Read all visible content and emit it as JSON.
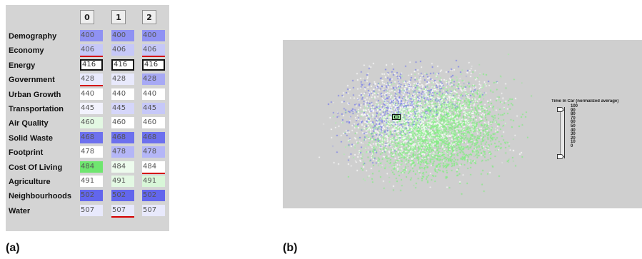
{
  "panel_a": {
    "caption": "(a)",
    "columns": [
      "0",
      "1",
      "2"
    ],
    "rows": [
      {
        "label": "Demography",
        "cells": [
          {
            "value": "400",
            "color": "#8f92f3"
          },
          {
            "value": "400",
            "color": "#8f92f3"
          },
          {
            "value": "400",
            "color": "#8f92f3"
          }
        ]
      },
      {
        "label": "Economy",
        "cells": [
          {
            "value": "406",
            "color": "#c6c8f8",
            "underline": true
          },
          {
            "value": "406",
            "color": "#c6c8f8"
          },
          {
            "value": "406",
            "color": "#c6c8f8",
            "underline": true
          }
        ]
      },
      {
        "label": "Energy",
        "cells": [
          {
            "value": "416",
            "color": "#ffffff",
            "selected": true
          },
          {
            "value": "416",
            "color": "#ffffff",
            "selected": true
          },
          {
            "value": "416",
            "color": "#ffffff",
            "selected": true
          }
        ]
      },
      {
        "label": "Government",
        "cells": [
          {
            "value": "428",
            "color": "#e8e9fc",
            "underline": true
          },
          {
            "value": "428",
            "color": "#e8e9fc"
          },
          {
            "value": "428",
            "color": "#a7a9f5"
          }
        ]
      },
      {
        "label": "Urban Growth",
        "cells": [
          {
            "value": "440",
            "color": "#ffffff"
          },
          {
            "value": "440",
            "color": "#ffffff"
          },
          {
            "value": "440",
            "color": "#ffffff"
          }
        ]
      },
      {
        "label": "Transportation",
        "cells": [
          {
            "value": "445",
            "color": "#f2f2fd"
          },
          {
            "value": "445",
            "color": "#d5d6fa"
          },
          {
            "value": "445",
            "color": "#c6c8f8"
          }
        ]
      },
      {
        "label": "Air Quality",
        "cells": [
          {
            "value": "460",
            "color": "#e3f8e3"
          },
          {
            "value": "460",
            "color": "#ffffff"
          },
          {
            "value": "460",
            "color": "#ffffff"
          }
        ]
      },
      {
        "label": "Solid Waste",
        "cells": [
          {
            "value": "468",
            "color": "#6d70ee"
          },
          {
            "value": "468",
            "color": "#6d70ee"
          },
          {
            "value": "468",
            "color": "#6d70ee"
          }
        ]
      },
      {
        "label": "Footprint",
        "cells": [
          {
            "value": "478",
            "color": "#ffffff"
          },
          {
            "value": "478",
            "color": "#b4b6f7"
          },
          {
            "value": "478",
            "color": "#b4b6f7"
          }
        ]
      },
      {
        "label": "Cost Of Living",
        "cells": [
          {
            "value": "484",
            "color": "#6fe66f"
          },
          {
            "value": "484",
            "color": "#edfbed"
          },
          {
            "value": "484",
            "color": "#ffffff",
            "underline": true
          }
        ]
      },
      {
        "label": "Agriculture",
        "cells": [
          {
            "value": "491",
            "color": "#ffffff"
          },
          {
            "value": "491",
            "color": "#e3f8e3"
          },
          {
            "value": "491",
            "color": "#d8f6d8"
          }
        ]
      },
      {
        "label": "Neighbourhoods",
        "cells": [
          {
            "value": "502",
            "color": "#6266ed"
          },
          {
            "value": "502",
            "color": "#6266ed"
          },
          {
            "value": "502",
            "color": "#6266ed"
          }
        ]
      },
      {
        "label": "Water",
        "cells": [
          {
            "value": "507",
            "color": "#e8e9fc"
          },
          {
            "value": "507",
            "color": "#e8e9fc",
            "underline": true
          },
          {
            "value": "507",
            "color": "#e8e9fc"
          }
        ]
      }
    ]
  },
  "panel_b": {
    "caption": "(b)",
    "legend_title": "Time In Car (normalized average)",
    "legend_ticks": [
      "100",
      "90",
      "80",
      "70",
      "60",
      "50",
      "40",
      "30",
      "20",
      "10",
      "0"
    ],
    "colors": {
      "background": "#cfcfcf",
      "low": "#7d82f0",
      "high": "#7cf07c"
    }
  }
}
